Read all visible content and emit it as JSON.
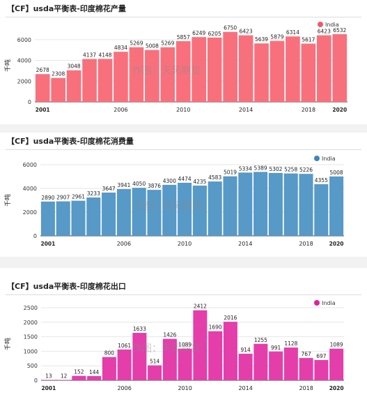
{
  "watermark": "作图：天风期货",
  "chart_data": [
    {
      "type": "bar",
      "title": "【CF】usda平衡表-印度棉花产量",
      "ylabel": "千吨",
      "legend": "India",
      "legend_position": "top-right",
      "color": "#f9707d",
      "legend_color": "#f05a66",
      "ylim": [
        0,
        7000
      ],
      "yticks": [
        0,
        2000,
        4000,
        6000
      ],
      "grid": true,
      "x_ticks": [
        "2001",
        "2006",
        "2010",
        "2014",
        "2018",
        "2020"
      ],
      "categories": [
        "2001",
        "2002",
        "2003",
        "2004",
        "2005",
        "2006",
        "2007",
        "2008",
        "2009",
        "2010",
        "2011",
        "2012",
        "2013",
        "2014",
        "2015",
        "2016",
        "2017",
        "2018",
        "2019",
        "2020"
      ],
      "values": [
        2678,
        2308,
        3048,
        4137,
        4148,
        4834,
        5269,
        5008,
        5269,
        5857,
        6249,
        6205,
        6750,
        6423,
        5639,
        5879,
        6314,
        5617,
        6423,
        6532
      ]
    },
    {
      "type": "bar",
      "title": "【CF】usda平衡表-印度棉花消费量",
      "ylabel": "千吨",
      "legend": "India",
      "legend_position": "top-right",
      "color": "#5799c7",
      "legend_color": "#3f86bd",
      "ylim": [
        0,
        6000
      ],
      "yticks": [
        0,
        2000,
        4000,
        6000
      ],
      "grid": true,
      "x_ticks": [
        "2001",
        "2006",
        "2010",
        "2014",
        "2018",
        "2020"
      ],
      "categories": [
        "2001",
        "2002",
        "2003",
        "2004",
        "2005",
        "2006",
        "2007",
        "2008",
        "2009",
        "2010",
        "2011",
        "2012",
        "2013",
        "2014",
        "2015",
        "2016",
        "2017",
        "2018",
        "2019",
        "2020"
      ],
      "values": [
        2890,
        2907,
        2961,
        3233,
        3647,
        3941,
        4050,
        3876,
        4300,
        4474,
        4235,
        4583,
        5019,
        5334,
        5389,
        5302,
        5258,
        5226,
        4355,
        5008
      ]
    },
    {
      "type": "bar",
      "title": "【CF】usda平衡表-印度棉花出口",
      "ylabel": "千吨",
      "legend": "India",
      "legend_position": "top-right",
      "color": "#e43eab",
      "legend_color": "#e0219e",
      "ylim": [
        0,
        2500
      ],
      "yticks": [
        0,
        500,
        1000,
        1500,
        2000,
        2500
      ],
      "grid": true,
      "x_ticks": [
        "2001",
        "2006",
        "2010",
        "2014",
        "2018",
        "2020"
      ],
      "categories": [
        "2001",
        "2002",
        "2003",
        "2004",
        "2005",
        "2006",
        "2007",
        "2008",
        "2009",
        "2010",
        "2011",
        "2012",
        "2013",
        "2014",
        "2015",
        "2016",
        "2017",
        "2018",
        "2019",
        "2020"
      ],
      "values": [
        13,
        12,
        152,
        144,
        800,
        1061,
        1633,
        514,
        1426,
        1089,
        2412,
        1690,
        2016,
        914,
        1255,
        991,
        1128,
        767,
        697,
        1089
      ]
    }
  ]
}
